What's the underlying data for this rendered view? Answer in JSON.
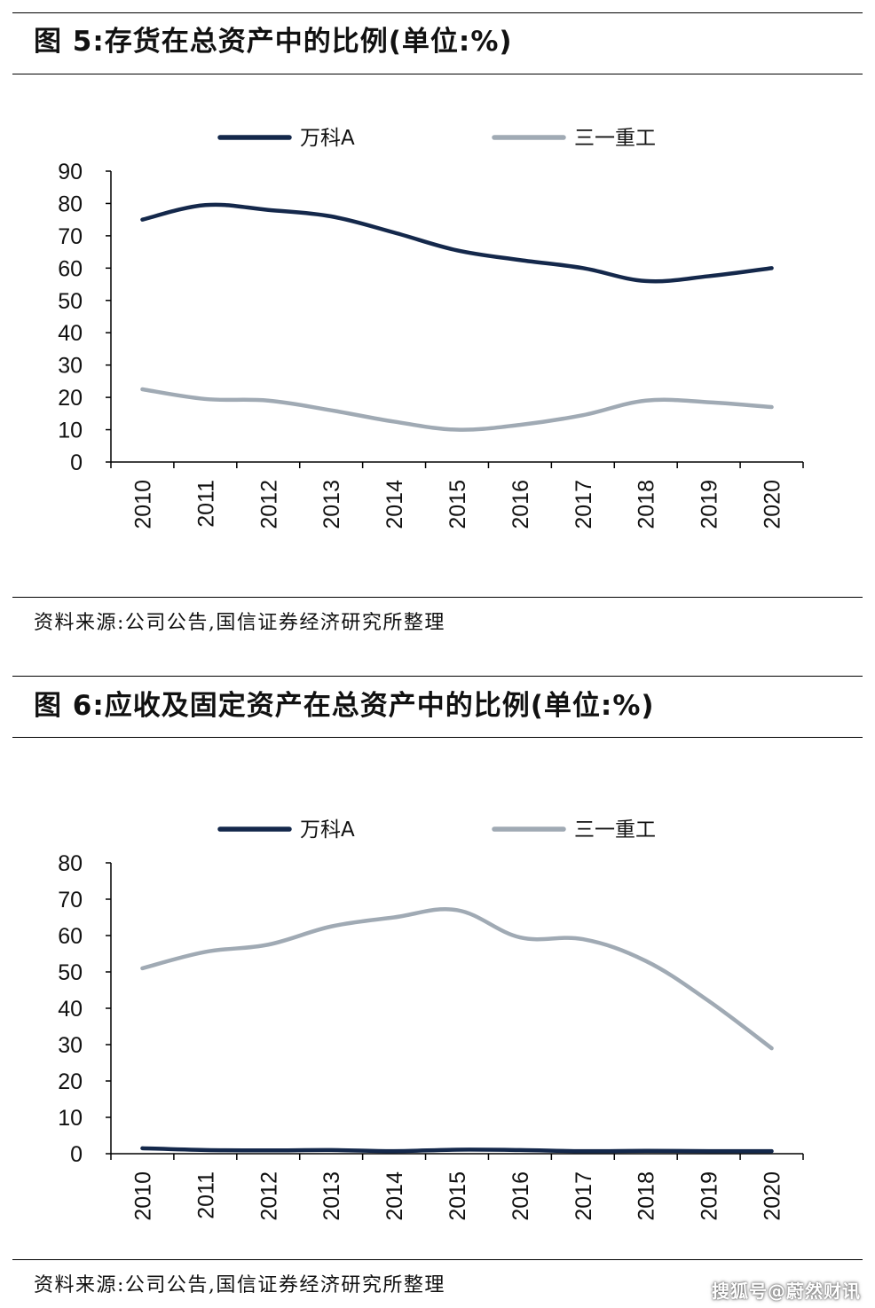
{
  "charts": [
    {
      "title": "图 5:存货在总资产中的比例(单位:%)",
      "source": "资料来源:公司公告,国信证券经济研究所整理"
    },
    {
      "title": "图 6:应收及固定资产在总资产中的比例(单位:%)",
      "source": "资料来源:公司公告,国信证券经济研究所整理"
    }
  ],
  "watermark": "搜狐号@蔚然财讯",
  "chart_data": [
    {
      "type": "line",
      "categories": [
        "2010",
        "2011",
        "2012",
        "2013",
        "2014",
        "2015",
        "2016",
        "2017",
        "2018",
        "2019",
        "2020"
      ],
      "ylim": [
        0,
        90
      ],
      "yticks": [
        0,
        10,
        20,
        30,
        40,
        50,
        60,
        70,
        80,
        90
      ],
      "legend_position": "top",
      "grid": false,
      "series": [
        {
          "name": "万科A",
          "color": "#14284b",
          "values": [
            75,
            79.5,
            78,
            76,
            71,
            65.5,
            62.5,
            60,
            56,
            57.5,
            60
          ]
        },
        {
          "name": "三一重工",
          "color": "#a0aab4",
          "values": [
            22.5,
            19.5,
            19,
            16,
            12.5,
            10,
            11.5,
            14.5,
            19,
            18.5,
            17
          ]
        }
      ]
    },
    {
      "type": "line",
      "categories": [
        "2010",
        "2011",
        "2012",
        "2013",
        "2014",
        "2015",
        "2016",
        "2017",
        "2018",
        "2019",
        "2020"
      ],
      "ylim": [
        0,
        80
      ],
      "yticks": [
        0,
        10,
        20,
        30,
        40,
        50,
        60,
        70,
        80
      ],
      "legend_position": "top",
      "grid": false,
      "series": [
        {
          "name": "万科A",
          "color": "#14284b",
          "values": [
            1.5,
            1.0,
            0.9,
            1.0,
            0.7,
            1.1,
            1.0,
            0.7,
            0.8,
            0.7,
            0.7
          ]
        },
        {
          "name": "三一重工",
          "color": "#a0aab4",
          "values": [
            51,
            55.5,
            57.5,
            62.5,
            65,
            67,
            59.5,
            59,
            53,
            42,
            29
          ]
        }
      ]
    }
  ]
}
